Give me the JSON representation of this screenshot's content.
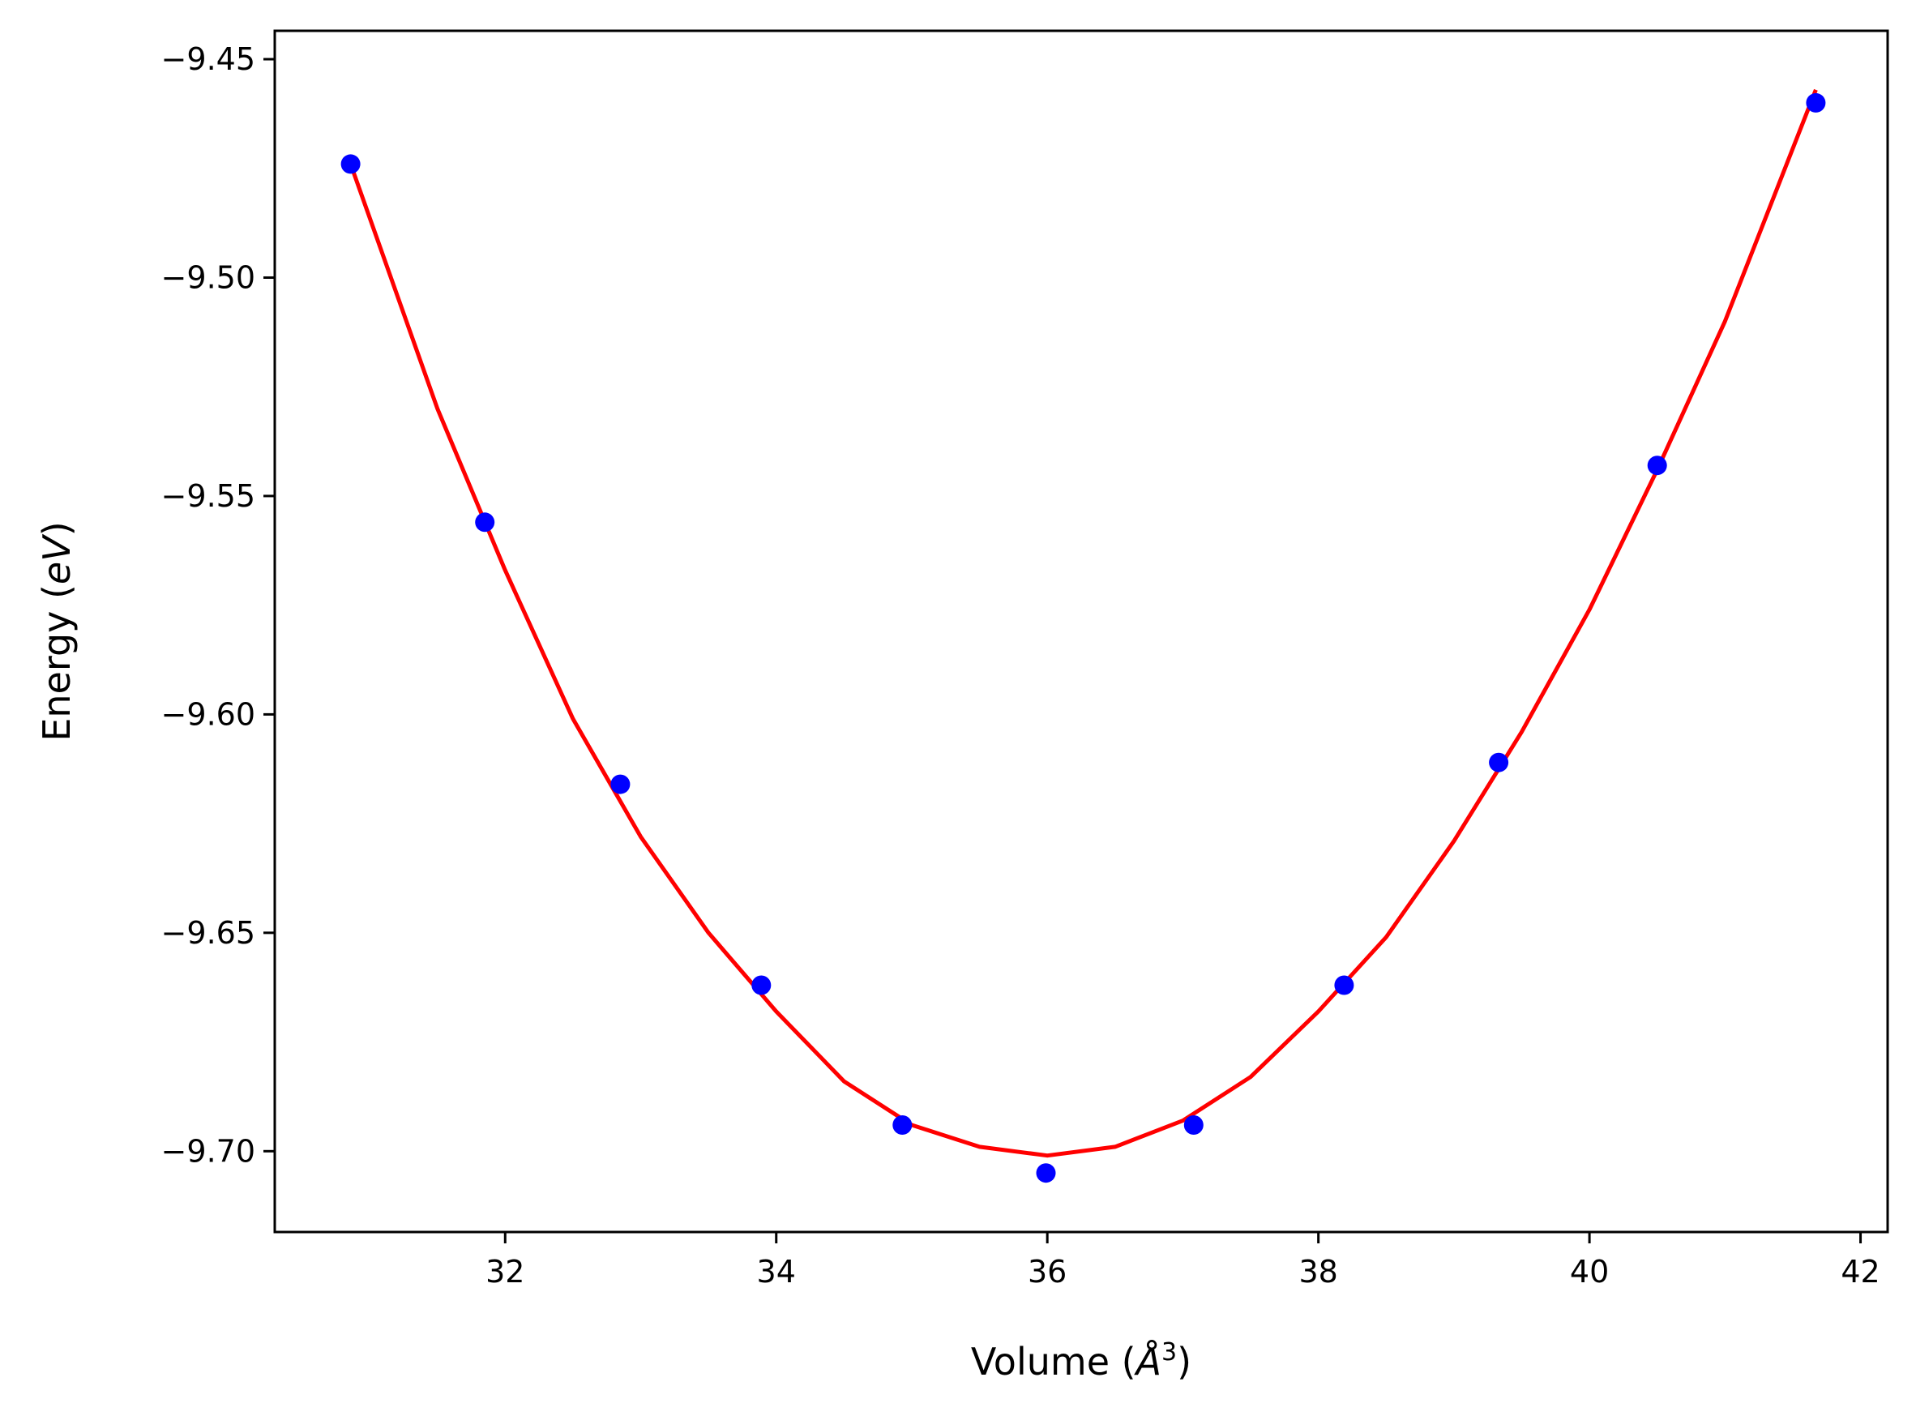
{
  "chart_data": {
    "type": "scatter",
    "xlabel_parts": [
      "Volume (",
      "Å",
      "3",
      ")"
    ],
    "ylabel_parts": [
      "Energy (",
      "eV",
      ")"
    ],
    "xlim": [
      30.3,
      42.2
    ],
    "ylim": [
      -9.7185,
      -9.4435
    ],
    "x_ticks": [
      32,
      34,
      36,
      38,
      40,
      42
    ],
    "x_tick_labels": [
      "32",
      "34",
      "36",
      "38",
      "40",
      "42"
    ],
    "y_ticks": [
      -9.45,
      -9.5,
      -9.55,
      -9.6,
      -9.65,
      -9.7
    ],
    "y_tick_labels": [
      "−9.45",
      "−9.50",
      "−9.55",
      "−9.60",
      "−9.65",
      "−9.70"
    ],
    "grid": false,
    "series": [
      {
        "kind": "points",
        "color": "#0000ff",
        "x": [
          30.86,
          31.85,
          32.85,
          33.89,
          34.93,
          35.99,
          37.08,
          38.19,
          39.33,
          40.5,
          41.67
        ],
        "y": [
          -9.474,
          -9.556,
          -9.616,
          -9.662,
          -9.694,
          -9.705,
          -9.694,
          -9.662,
          -9.611,
          -9.543,
          -9.46
        ]
      },
      {
        "kind": "fit-line",
        "color": "#ff0000",
        "x": [
          30.86,
          31.5,
          32.0,
          32.5,
          33.0,
          33.5,
          34.0,
          34.5,
          35.0,
          35.5,
          36.0,
          36.5,
          37.0,
          37.5,
          38.0,
          38.5,
          39.0,
          39.5,
          40.0,
          40.5,
          41.0,
          41.67
        ],
        "y": [
          -9.474,
          -9.53,
          -9.567,
          -9.601,
          -9.628,
          -9.65,
          -9.668,
          -9.684,
          -9.694,
          -9.699,
          -9.701,
          -9.699,
          -9.693,
          -9.683,
          -9.668,
          -9.651,
          -9.629,
          -9.604,
          -9.576,
          -9.544,
          -9.51,
          -9.457
        ]
      }
    ]
  }
}
